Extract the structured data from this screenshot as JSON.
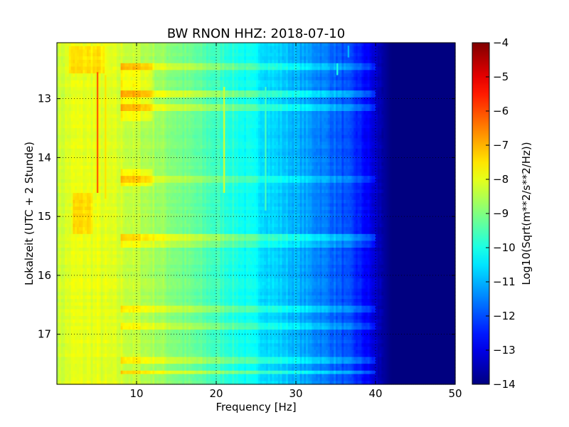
{
  "chart_data": {
    "type": "heatmap",
    "title": "BW RNON HHZ: 2018-07-10",
    "xlabel": "Frequency [Hz]",
    "ylabel": "Lokalzeit (UTC + 2 Stunde)",
    "xlim": [
      0,
      50
    ],
    "ylim": [
      17.85,
      12.05
    ],
    "y_inverted": true,
    "xticks": [
      10,
      20,
      30,
      40,
      50
    ],
    "xtick_labels": [
      "10",
      "20",
      "30",
      "40",
      "50"
    ],
    "yticks": [
      13,
      14,
      15,
      16,
      17
    ],
    "ytick_labels": [
      "13",
      "14",
      "15",
      "16",
      "17"
    ],
    "grid": true,
    "colormap": "jet",
    "colorbar": {
      "label": "Log10(Sqrt(m**2/s**2/Hz))",
      "range": [
        -14,
        -4
      ],
      "ticks": [
        -4,
        -5,
        -6,
        -7,
        -8,
        -9,
        -10,
        -11,
        -12,
        -13,
        -14
      ],
      "tick_labels": [
        "−4",
        "−5",
        "−6",
        "−7",
        "−8",
        "−9",
        "−10",
        "−11",
        "−12",
        "−13",
        "−14"
      ]
    },
    "spectral_profile": {
      "frequency_hz": [
        0,
        2,
        5,
        8,
        12,
        15,
        18,
        22,
        26,
        30,
        34,
        37,
        39,
        40.5,
        42,
        50
      ],
      "level": [
        -8.3,
        -8.0,
        -8.0,
        -8.2,
        -8.6,
        -9.0,
        -9.4,
        -9.9,
        -10.5,
        -11.0,
        -11.6,
        -12.2,
        -12.8,
        -13.5,
        -14.0,
        -14.0
      ]
    },
    "vertical_lines": [
      {
        "frequency_hz": 5.1,
        "time_start": 12.55,
        "time_end": 14.6,
        "level": -6.2
      },
      {
        "frequency_hz": 6.1,
        "time_start": 12.6,
        "time_end": 14.7,
        "level": -7.5
      },
      {
        "frequency_hz": 21.0,
        "time_start": 12.8,
        "time_end": 14.6,
        "level": -8.3
      },
      {
        "frequency_hz": 26.2,
        "time_start": 12.8,
        "time_end": 14.9,
        "level": -9.6
      },
      {
        "frequency_hz": 35.2,
        "time_start": 12.4,
        "time_end": 12.6,
        "level": -10.0
      },
      {
        "frequency_hz": 36.6,
        "time_start": 12.1,
        "time_end": 12.3,
        "level": -11.0
      }
    ],
    "horizontal_bands": [
      {
        "time": 12.45,
        "offset": 0.7
      },
      {
        "time": 12.9,
        "offset": 1.0
      },
      {
        "time": 13.15,
        "offset": 0.8
      },
      {
        "time": 14.35,
        "offset": 0.6
      },
      {
        "time": 15.35,
        "offset": 0.9
      },
      {
        "time": 15.45,
        "offset": 0.5
      },
      {
        "time": 16.55,
        "offset": 0.8
      },
      {
        "time": 16.6,
        "offset": 0.6
      },
      {
        "time": 16.85,
        "offset": 0.6
      },
      {
        "time": 17.45,
        "offset": 0.8
      },
      {
        "time": 17.65,
        "offset": 1.0
      }
    ],
    "warm_patches": [
      {
        "f_start": 1.5,
        "f_end": 6,
        "t_start": 12.1,
        "t_end": 12.6,
        "offset": 0.5
      },
      {
        "f_start": 2,
        "f_end": 4.5,
        "t_start": 14.6,
        "t_end": 15.3,
        "offset": 0.6
      },
      {
        "f_start": 8,
        "f_end": 12,
        "t_start": 12.4,
        "t_end": 13.4,
        "offset": 0.5
      },
      {
        "f_start": 8,
        "f_end": 12,
        "t_start": 14.2,
        "t_end": 14.5,
        "offset": 0.6
      }
    ]
  }
}
